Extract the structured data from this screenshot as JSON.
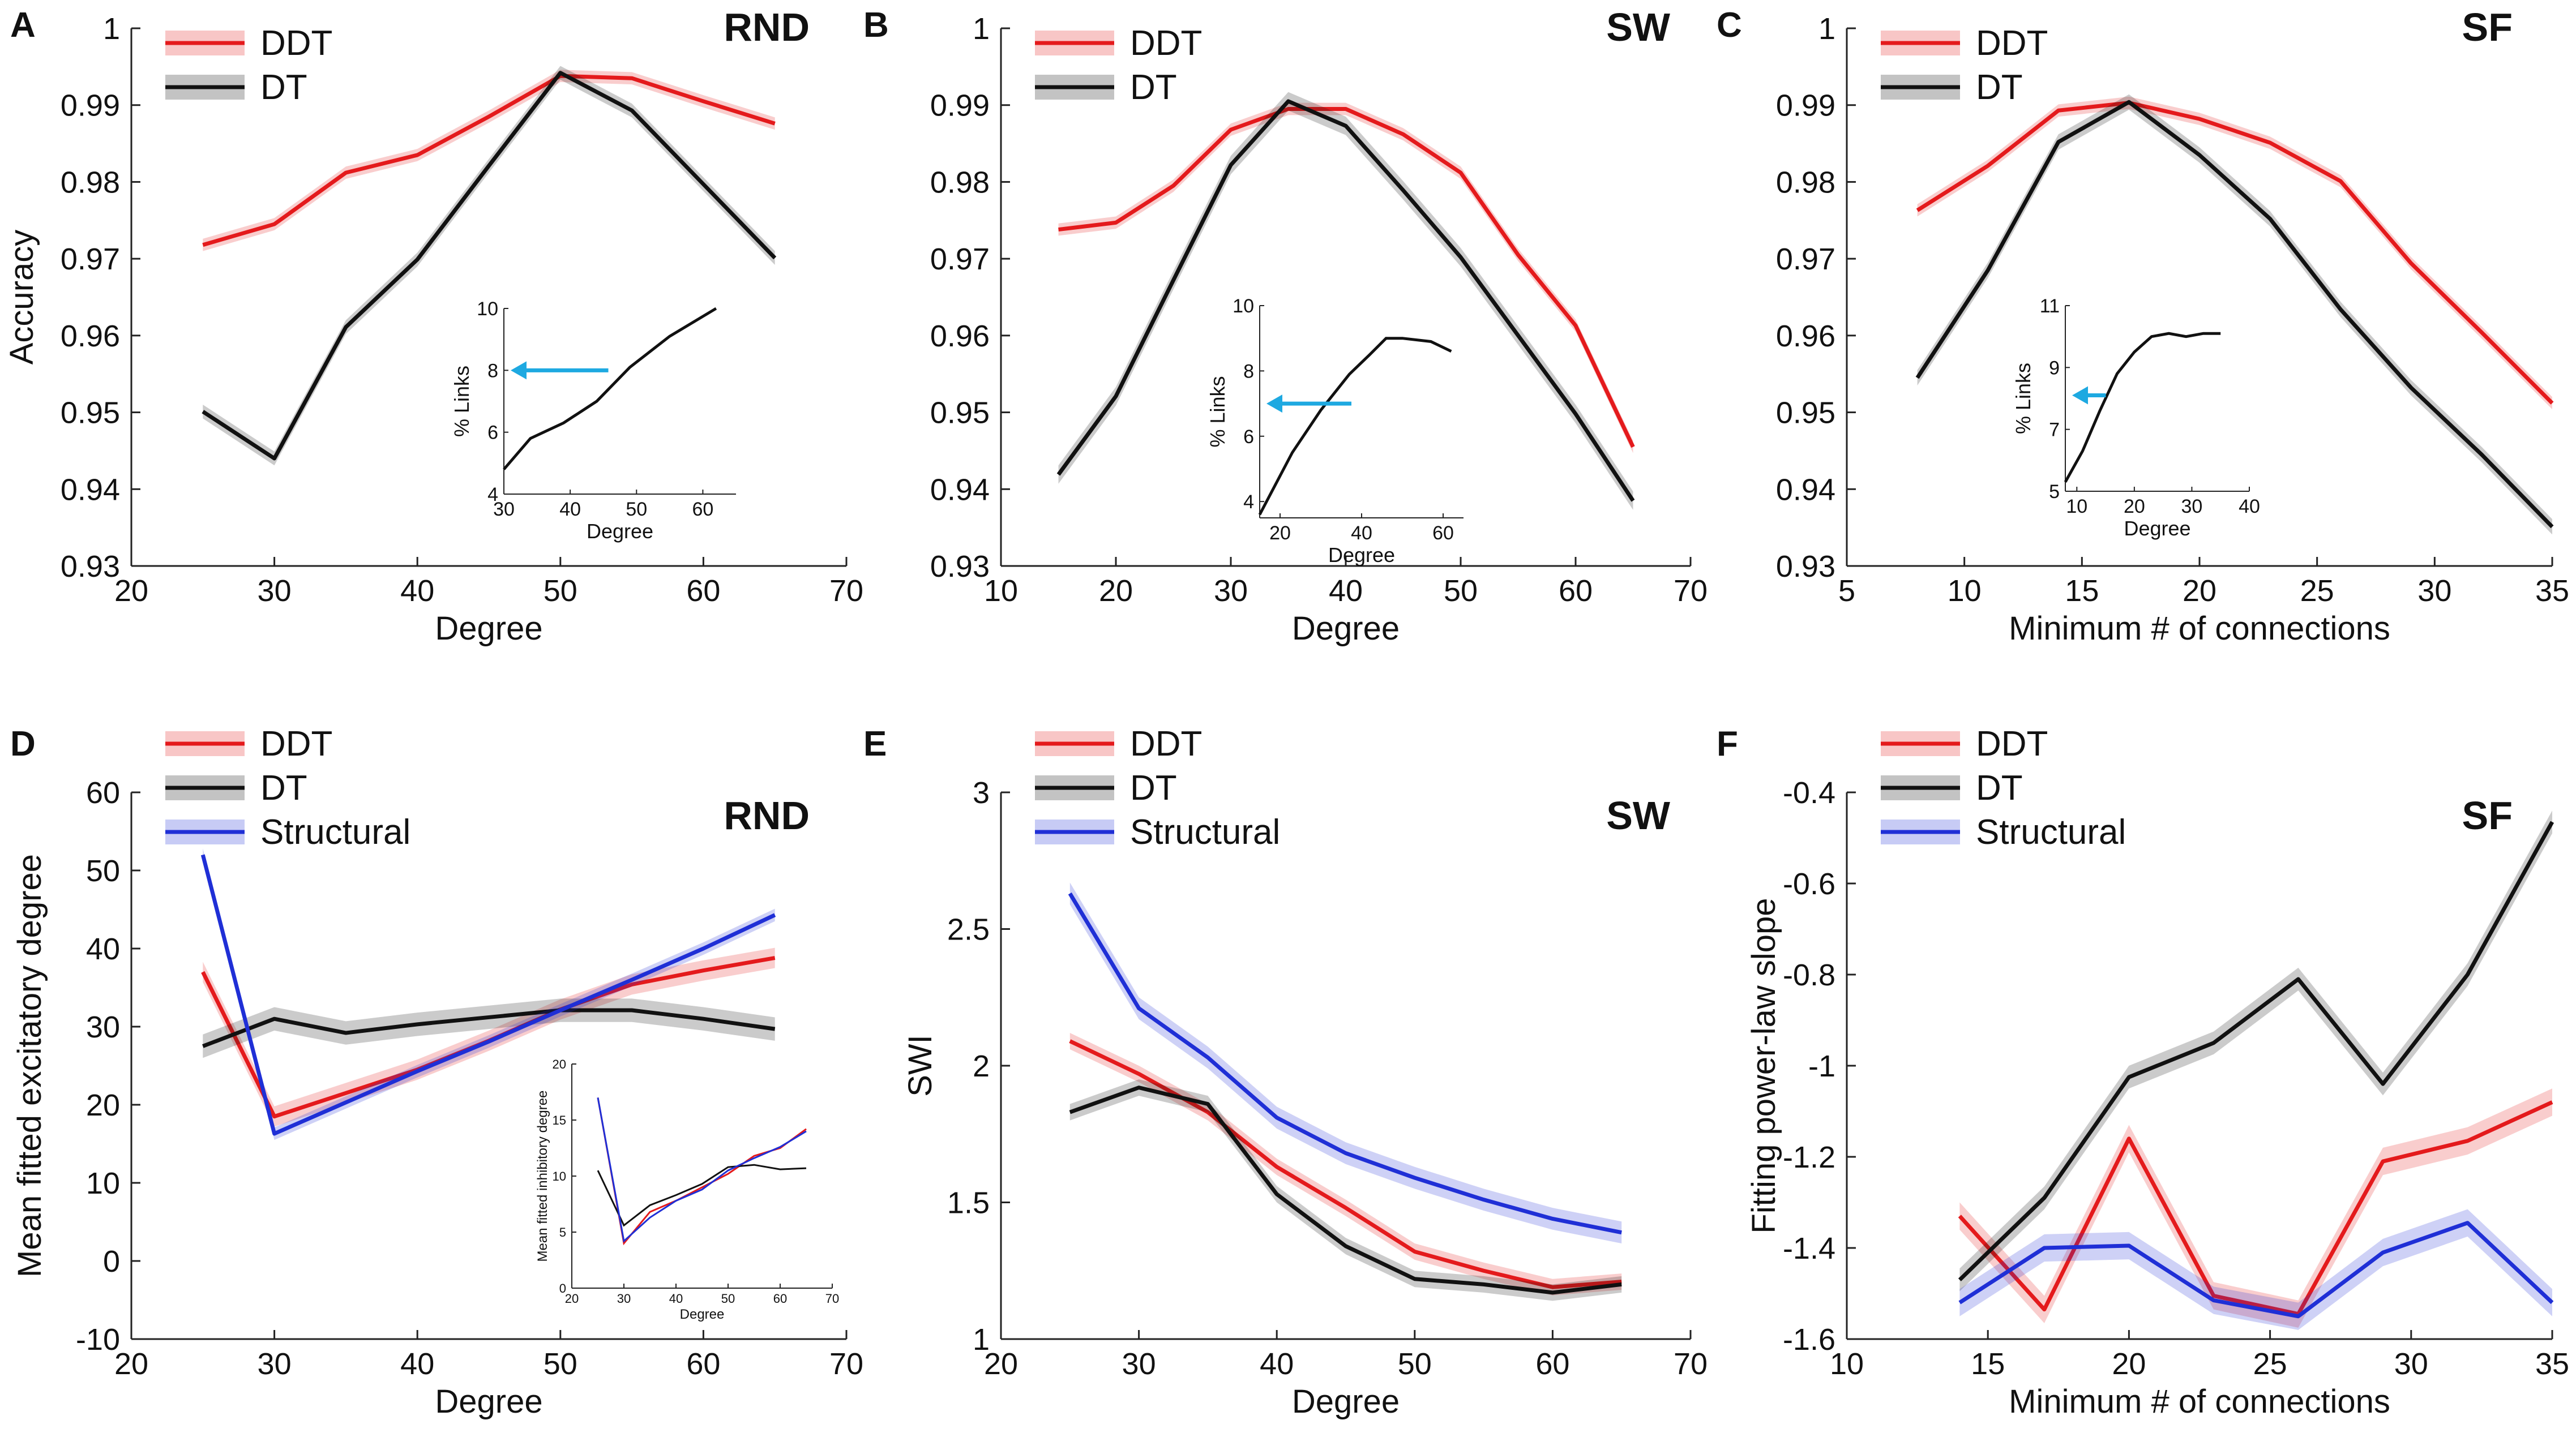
{
  "colors": {
    "DDT": "#e41a1c",
    "DT": "#111111",
    "Structural": "#1f2fd6",
    "arrow": "#1ea9e1"
  },
  "panels": [
    {
      "id": "A",
      "tag": "RND",
      "type": "line",
      "xlabel": "Degree",
      "ylabel": "Accuracy",
      "xlim": [
        20,
        70
      ],
      "ylim": [
        0.93,
        1
      ],
      "xticks": [
        "20",
        "30",
        "40",
        "50",
        "60",
        "70"
      ],
      "yticks": [
        "0.93",
        "0.94",
        "0.95",
        "0.96",
        "0.97",
        "0.98",
        "0.99",
        "1"
      ],
      "legend": [
        "DDT",
        "DT"
      ],
      "series": [
        {
          "name": "DDT",
          "x": [
            25,
            30,
            35,
            40,
            45,
            50,
            55,
            60,
            65
          ],
          "y": [
            0.9718,
            0.9745,
            0.9812,
            0.9835,
            0.9885,
            0.9938,
            0.9935,
            0.9905,
            0.9876
          ],
          "band": 0.0008
        },
        {
          "name": "DT",
          "x": [
            25,
            30,
            35,
            40,
            45,
            50,
            55,
            60,
            65
          ],
          "y": [
            0.9501,
            0.944,
            0.9611,
            0.9699,
            0.9821,
            0.9942,
            0.9893,
            0.9797,
            0.9701
          ],
          "band": 0.0009
        }
      ],
      "inset": {
        "xlabel": "Degree",
        "ylabel": "% Links",
        "xlim": [
          30,
          65
        ],
        "ylim": [
          4,
          10
        ],
        "xticks": [
          "30",
          "40",
          "50",
          "60"
        ],
        "yticks": [
          "4",
          "6",
          "8",
          "10"
        ],
        "x": [
          30,
          34,
          39,
          44,
          49,
          55,
          62
        ],
        "y": [
          4.8,
          5.8,
          6.3,
          7.0,
          8.1,
          9.1,
          10.0
        ],
        "arrow_y": 8
      }
    },
    {
      "id": "B",
      "tag": "SW",
      "type": "line",
      "xlabel": "Degree",
      "ylabel": "",
      "xlim": [
        10,
        70
      ],
      "ylim": [
        0.93,
        1
      ],
      "xticks": [
        "10",
        "20",
        "30",
        "40",
        "50",
        "60",
        "70"
      ],
      "yticks": [
        "0.93",
        "0.94",
        "0.95",
        "0.96",
        "0.97",
        "0.98",
        "0.99",
        "1"
      ],
      "legend": [
        "DDT",
        "DT"
      ],
      "series": [
        {
          "name": "DDT",
          "x": [
            15,
            20,
            25,
            30,
            35,
            40,
            45,
            50,
            55,
            60,
            65
          ],
          "y": [
            0.9738,
            0.9747,
            0.9795,
            0.9868,
            0.9895,
            0.9895,
            0.9862,
            0.9812,
            0.9705,
            0.9613,
            0.9455
          ],
          "band": 0.0008
        },
        {
          "name": "DT",
          "x": [
            15,
            20,
            25,
            30,
            35,
            40,
            45,
            50,
            55,
            60,
            65
          ],
          "y": [
            0.9419,
            0.9521,
            0.9672,
            0.9822,
            0.9905,
            0.9873,
            0.9789,
            0.9702,
            0.96,
            0.9498,
            0.9385
          ],
          "band": 0.0012
        }
      ],
      "inset": {
        "xlabel": "Degree",
        "ylabel": "% Links",
        "xlim": [
          15,
          65
        ],
        "ylim": [
          3.5,
          10
        ],
        "xticks": [
          "20",
          "40",
          "60"
        ],
        "yticks": [
          "4",
          "6",
          "8",
          "10"
        ],
        "x": [
          15,
          23,
          30,
          37,
          42,
          46,
          50,
          57,
          62
        ],
        "y": [
          3.6,
          5.5,
          6.8,
          7.9,
          8.5,
          9.0,
          9.0,
          8.9,
          8.6
        ],
        "arrow_y": 7
      }
    },
    {
      "id": "C",
      "tag": "SF",
      "type": "line",
      "xlabel": "Minimum # of connections",
      "ylabel": "",
      "xlim": [
        5,
        35
      ],
      "ylim": [
        0.93,
        1
      ],
      "xticks": [
        "5",
        "10",
        "15",
        "20",
        "25",
        "30",
        "35"
      ],
      "yticks": [
        "0.93",
        "0.94",
        "0.95",
        "0.96",
        "0.97",
        "0.98",
        "0.99",
        "1"
      ],
      "legend": [
        "DDT",
        "DT"
      ],
      "series": [
        {
          "name": "DDT",
          "x": [
            8,
            11,
            14,
            17,
            20,
            23,
            26,
            29,
            32,
            35
          ],
          "y": [
            0.9763,
            0.9821,
            0.9893,
            0.9903,
            0.9882,
            0.9851,
            0.9801,
            0.9694,
            0.9604,
            0.9512
          ],
          "band": 0.0008
        },
        {
          "name": "DT",
          "x": [
            8,
            11,
            14,
            17,
            20,
            23,
            26,
            29,
            32,
            35
          ],
          "y": [
            0.9545,
            0.9685,
            0.9852,
            0.9904,
            0.9835,
            0.9752,
            0.9634,
            0.9532,
            0.9445,
            0.9351
          ],
          "band": 0.001
        }
      ],
      "inset": {
        "xlabel": "Degree",
        "ylabel": "% Links",
        "xlim": [
          8,
          40
        ],
        "ylim": [
          5,
          11
        ],
        "xticks": [
          "10",
          "20",
          "30",
          "40"
        ],
        "yticks": [
          "5",
          "7",
          "9",
          "11"
        ],
        "x": [
          8,
          11,
          14,
          17,
          20,
          23,
          26,
          29,
          32,
          35
        ],
        "y": [
          5.3,
          6.3,
          7.6,
          8.8,
          9.5,
          10.0,
          10.1,
          10.0,
          10.1,
          10.1
        ],
        "arrow_y": 8.1
      }
    },
    {
      "id": "D",
      "tag": "RND",
      "type": "line",
      "xlabel": "Degree",
      "ylabel": "Mean fitted excitatory degree",
      "xlim": [
        20,
        70
      ],
      "ylim": [
        -10,
        60
      ],
      "xticks": [
        "20",
        "30",
        "40",
        "50",
        "60",
        "70"
      ],
      "yticks": [
        "-10",
        "0",
        "10",
        "20",
        "30",
        "40",
        "50",
        "60"
      ],
      "legend": [
        "DDT",
        "DT",
        "Structural"
      ],
      "series": [
        {
          "name": "DDT",
          "x": [
            25,
            30,
            35,
            40,
            45,
            50,
            55,
            60,
            65
          ],
          "y": [
            37.0,
            18.5,
            21.5,
            24.5,
            28.2,
            32.2,
            35.4,
            37.2,
            38.8
          ],
          "band": 1.3
        },
        {
          "name": "DT",
          "x": [
            25,
            30,
            35,
            40,
            45,
            50,
            55,
            60,
            65
          ],
          "y": [
            27.5,
            31.0,
            29.2,
            30.3,
            31.2,
            32.1,
            32.1,
            31.0,
            29.7
          ],
          "band": 1.5
        },
        {
          "name": "Structural",
          "x": [
            25,
            30,
            35,
            40,
            45,
            50,
            55,
            60,
            65
          ],
          "y": [
            52.0,
            16.3,
            20.3,
            24.3,
            28.1,
            32.1,
            36.0,
            40.0,
            44.3
          ],
          "band": 0.8
        }
      ],
      "inset": {
        "xlabel": "Degree",
        "ylabel": "Mean fitted inhibitory degree",
        "xlim": [
          20,
          70
        ],
        "ylim": [
          0,
          20
        ],
        "xticks": [
          "20",
          "30",
          "40",
          "50",
          "60",
          "70"
        ],
        "yticks": [
          "0",
          "5",
          "10",
          "15",
          "20"
        ],
        "series": [
          {
            "name": "DDT",
            "x": [
              25,
              30,
              35,
              40,
              45,
              50,
              55,
              60,
              65
            ],
            "y": [
              17.0,
              4.0,
              6.8,
              7.8,
              9.0,
              10.2,
              11.8,
              12.5,
              14.2
            ]
          },
          {
            "name": "DT",
            "x": [
              25,
              30,
              35,
              40,
              45,
              50,
              55,
              60,
              65
            ],
            "y": [
              10.5,
              5.6,
              7.4,
              8.3,
              9.3,
              10.8,
              11.0,
              10.6,
              10.7
            ]
          },
          {
            "name": "Structural",
            "x": [
              25,
              30,
              35,
              40,
              45,
              50,
              55,
              60,
              65
            ],
            "y": [
              17.0,
              4.2,
              6.3,
              7.8,
              8.8,
              10.5,
              11.6,
              12.6,
              14.0
            ]
          }
        ]
      }
    },
    {
      "id": "E",
      "tag": "SW",
      "type": "line",
      "xlabel": "Degree",
      "ylabel": "SWI",
      "xlim": [
        20,
        70
      ],
      "ylim": [
        1,
        3
      ],
      "xticks": [
        "20",
        "30",
        "40",
        "50",
        "60",
        "70"
      ],
      "yticks": [
        "1",
        "1.5",
        "2",
        "2.5",
        "3"
      ],
      "legend": [
        "DDT",
        "DT",
        "Structural"
      ],
      "series": [
        {
          "name": "DDT",
          "x": [
            25,
            30,
            35,
            40,
            45,
            50,
            55,
            60,
            65
          ],
          "y": [
            2.09,
            1.97,
            1.83,
            1.63,
            1.48,
            1.32,
            1.25,
            1.19,
            1.21
          ],
          "band": 0.03
        },
        {
          "name": "DT",
          "x": [
            25,
            30,
            35,
            40,
            45,
            50,
            55,
            60,
            65
          ],
          "y": [
            1.83,
            1.92,
            1.86,
            1.53,
            1.34,
            1.22,
            1.2,
            1.17,
            1.2
          ],
          "band": 0.03
        },
        {
          "name": "Structural",
          "x": [
            25,
            30,
            35,
            40,
            45,
            50,
            55,
            60,
            65
          ],
          "y": [
            2.63,
            2.21,
            2.03,
            1.81,
            1.68,
            1.59,
            1.51,
            1.44,
            1.39
          ],
          "band": 0.04
        }
      ]
    },
    {
      "id": "F",
      "tag": "SF",
      "type": "line",
      "xlabel": "Minimum # of connections",
      "ylabel": "Fitting power-law slope",
      "xlim": [
        10,
        35
      ],
      "ylim": [
        -1.6,
        -0.4
      ],
      "xticks": [
        "10",
        "15",
        "20",
        "25",
        "30",
        "35"
      ],
      "yticks": [
        "-1.6",
        "-1.4",
        "-1.2",
        "-1",
        "-0.8",
        "-0.6",
        "-0.4"
      ],
      "legend": [
        "DDT",
        "DT",
        "Structural"
      ],
      "series": [
        {
          "name": "DDT",
          "x": [
            14,
            17,
            20,
            23,
            26,
            29,
            32,
            35
          ],
          "y": [
            -1.33,
            -1.535,
            -1.16,
            -1.505,
            -1.545,
            -1.21,
            -1.165,
            -1.08
          ],
          "band": 0.03
        },
        {
          "name": "DT",
          "x": [
            14,
            17,
            20,
            23,
            26,
            29,
            32,
            35
          ],
          "y": [
            -1.47,
            -1.29,
            -1.025,
            -0.95,
            -0.81,
            -1.04,
            -0.8,
            -0.465
          ],
          "band": 0.025
        },
        {
          "name": "Structural",
          "x": [
            14,
            17,
            20,
            23,
            26,
            29,
            32,
            35
          ],
          "y": [
            -1.52,
            -1.4,
            -1.395,
            -1.515,
            -1.55,
            -1.41,
            -1.345,
            -1.52
          ],
          "band": 0.03
        }
      ]
    }
  ]
}
